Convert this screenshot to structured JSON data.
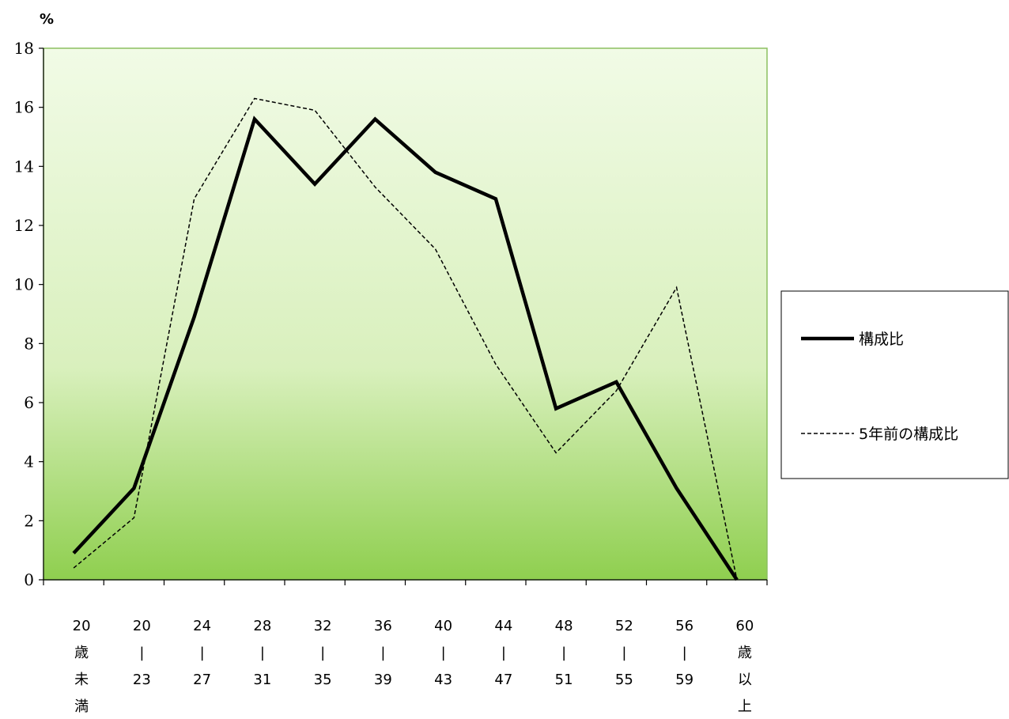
{
  "chart_data": {
    "type": "line",
    "ylabel": "%",
    "ylim": [
      0,
      18
    ],
    "y_ticks": [
      0,
      2,
      4,
      6,
      8,
      10,
      12,
      14,
      16,
      18
    ],
    "categories": [
      [
        "20",
        "歳",
        "未",
        "満"
      ],
      [
        "20",
        "|",
        "23"
      ],
      [
        "24",
        "|",
        "27"
      ],
      [
        "28",
        "|",
        "31"
      ],
      [
        "32",
        "|",
        "35"
      ],
      [
        "36",
        "|",
        "39"
      ],
      [
        "40",
        "|",
        "43"
      ],
      [
        "44",
        "|",
        "47"
      ],
      [
        "48",
        "|",
        "51"
      ],
      [
        "52",
        "|",
        "55"
      ],
      [
        "56",
        "|",
        "59"
      ],
      [
        "60",
        "歳",
        "以",
        "上"
      ]
    ],
    "series": [
      {
        "name": "構成比",
        "style": "solid",
        "color": "#000000",
        "values": [
          0.9,
          3.1,
          8.9,
          15.6,
          13.4,
          15.6,
          13.8,
          12.9,
          5.8,
          6.7,
          3.1,
          0.0
        ]
      },
      {
        "name": "5年前の構成比",
        "style": "dashed",
        "color": "#000000",
        "values": [
          0.4,
          2.1,
          12.9,
          16.3,
          15.9,
          13.3,
          11.2,
          7.3,
          4.3,
          6.4,
          9.9,
          0.0
        ]
      }
    ],
    "legend_position": "right",
    "grid": false,
    "plot_background": {
      "gradient_top": "#f1fbe6",
      "gradient_mid": "#d9f0bd",
      "gradient_bottom": "#8fcf4f"
    }
  }
}
